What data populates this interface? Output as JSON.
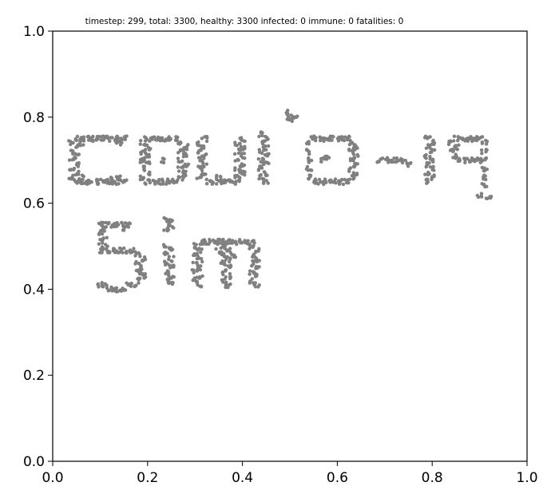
{
  "chart_data": {
    "type": "scatter",
    "title": "timestep: 299, total: 3300, healthy: 3300 infected: 0 immune: 0 fatalities: 0",
    "xlabel": "",
    "ylabel": "",
    "xlim": [
      0.0,
      1.0
    ],
    "ylim": [
      0.0,
      1.0
    ],
    "xticks": [
      "0.0",
      "0.2",
      "0.4",
      "0.6",
      "0.8",
      "1.0"
    ],
    "yticks": [
      "0.0",
      "0.2",
      "0.4",
      "0.6",
      "0.8",
      "1.0"
    ],
    "grid": false,
    "point_color": "#808080",
    "series": [
      {
        "values_description_note": "",
        "points": [
          [
            0.04,
            0.74
          ],
          [
            0.04,
            0.72
          ],
          [
            0.04,
            0.7
          ],
          [
            0.04,
            0.68
          ],
          [
            0.04,
            0.66
          ],
          [
            0.05,
            0.75
          ],
          [
            0.05,
            0.65
          ],
          [
            0.06,
            0.75
          ],
          [
            0.07,
            0.75
          ],
          [
            0.08,
            0.75
          ],
          [
            0.09,
            0.75
          ],
          [
            0.1,
            0.75
          ],
          [
            0.11,
            0.75
          ],
          [
            0.12,
            0.75
          ],
          [
            0.13,
            0.75
          ],
          [
            0.14,
            0.75
          ],
          [
            0.15,
            0.75
          ],
          [
            0.06,
            0.65
          ],
          [
            0.07,
            0.65
          ],
          [
            0.08,
            0.65
          ],
          [
            0.09,
            0.65
          ],
          [
            0.1,
            0.65
          ],
          [
            0.11,
            0.65
          ],
          [
            0.12,
            0.65
          ],
          [
            0.13,
            0.65
          ],
          [
            0.14,
            0.65
          ],
          [
            0.15,
            0.65
          ],
          [
            0.05,
            0.73
          ],
          [
            0.05,
            0.71
          ],
          [
            0.05,
            0.69
          ],
          [
            0.05,
            0.67
          ],
          [
            0.06,
            0.74
          ],
          [
            0.06,
            0.66
          ],
          [
            0.14,
            0.74
          ],
          [
            0.14,
            0.66
          ],
          [
            0.13,
            0.745
          ],
          [
            0.12,
            0.655
          ],
          [
            0.19,
            0.74
          ],
          [
            0.19,
            0.72
          ],
          [
            0.19,
            0.7
          ],
          [
            0.19,
            0.68
          ],
          [
            0.19,
            0.66
          ],
          [
            0.2,
            0.75
          ],
          [
            0.2,
            0.73
          ],
          [
            0.2,
            0.71
          ],
          [
            0.2,
            0.69
          ],
          [
            0.2,
            0.67
          ],
          [
            0.2,
            0.65
          ],
          [
            0.21,
            0.75
          ],
          [
            0.22,
            0.75
          ],
          [
            0.23,
            0.75
          ],
          [
            0.24,
            0.75
          ],
          [
            0.25,
            0.75
          ],
          [
            0.26,
            0.75
          ],
          [
            0.21,
            0.65
          ],
          [
            0.22,
            0.65
          ],
          [
            0.23,
            0.65
          ],
          [
            0.24,
            0.65
          ],
          [
            0.25,
            0.65
          ],
          [
            0.26,
            0.65
          ],
          [
            0.27,
            0.74
          ],
          [
            0.27,
            0.72
          ],
          [
            0.27,
            0.7
          ],
          [
            0.27,
            0.68
          ],
          [
            0.27,
            0.66
          ],
          [
            0.28,
            0.73
          ],
          [
            0.28,
            0.71
          ],
          [
            0.28,
            0.69
          ],
          [
            0.28,
            0.67
          ],
          [
            0.23,
            0.7
          ],
          [
            0.31,
            0.74
          ],
          [
            0.31,
            0.72
          ],
          [
            0.31,
            0.7
          ],
          [
            0.31,
            0.68
          ],
          [
            0.31,
            0.66
          ],
          [
            0.32,
            0.75
          ],
          [
            0.32,
            0.73
          ],
          [
            0.32,
            0.71
          ],
          [
            0.32,
            0.69
          ],
          [
            0.32,
            0.67
          ],
          [
            0.33,
            0.65
          ],
          [
            0.34,
            0.65
          ],
          [
            0.35,
            0.65
          ],
          [
            0.36,
            0.65
          ],
          [
            0.37,
            0.65
          ],
          [
            0.38,
            0.65
          ],
          [
            0.39,
            0.65
          ],
          [
            0.39,
            0.74
          ],
          [
            0.39,
            0.72
          ],
          [
            0.39,
            0.7
          ],
          [
            0.39,
            0.68
          ],
          [
            0.39,
            0.66
          ],
          [
            0.4,
            0.75
          ],
          [
            0.4,
            0.73
          ],
          [
            0.4,
            0.71
          ],
          [
            0.4,
            0.69
          ],
          [
            0.4,
            0.67
          ],
          [
            0.35,
            0.66
          ],
          [
            0.44,
            0.76
          ],
          [
            0.44,
            0.74
          ],
          [
            0.44,
            0.72
          ],
          [
            0.44,
            0.7
          ],
          [
            0.44,
            0.68
          ],
          [
            0.44,
            0.66
          ],
          [
            0.45,
            0.75
          ],
          [
            0.45,
            0.73
          ],
          [
            0.45,
            0.71
          ],
          [
            0.45,
            0.69
          ],
          [
            0.45,
            0.67
          ],
          [
            0.45,
            0.65
          ],
          [
            0.49,
            0.81
          ],
          [
            0.5,
            0.8
          ],
          [
            0.51,
            0.8
          ],
          [
            0.5,
            0.795
          ],
          [
            0.54,
            0.74
          ],
          [
            0.54,
            0.72
          ],
          [
            0.54,
            0.7
          ],
          [
            0.54,
            0.68
          ],
          [
            0.54,
            0.66
          ],
          [
            0.55,
            0.75
          ],
          [
            0.55,
            0.65
          ],
          [
            0.56,
            0.75
          ],
          [
            0.57,
            0.75
          ],
          [
            0.58,
            0.75
          ],
          [
            0.59,
            0.75
          ],
          [
            0.6,
            0.75
          ],
          [
            0.61,
            0.75
          ],
          [
            0.62,
            0.75
          ],
          [
            0.56,
            0.65
          ],
          [
            0.57,
            0.65
          ],
          [
            0.58,
            0.65
          ],
          [
            0.59,
            0.65
          ],
          [
            0.6,
            0.65
          ],
          [
            0.61,
            0.65
          ],
          [
            0.62,
            0.65
          ],
          [
            0.63,
            0.74
          ],
          [
            0.63,
            0.72
          ],
          [
            0.63,
            0.7
          ],
          [
            0.63,
            0.68
          ],
          [
            0.63,
            0.66
          ],
          [
            0.64,
            0.73
          ],
          [
            0.64,
            0.71
          ],
          [
            0.64,
            0.69
          ],
          [
            0.64,
            0.67
          ],
          [
            0.57,
            0.7
          ],
          [
            0.58,
            0.705
          ],
          [
            0.69,
            0.7
          ],
          [
            0.7,
            0.7
          ],
          [
            0.71,
            0.7
          ],
          [
            0.72,
            0.7
          ],
          [
            0.73,
            0.7
          ],
          [
            0.74,
            0.7
          ],
          [
            0.75,
            0.69
          ],
          [
            0.79,
            0.75
          ],
          [
            0.79,
            0.73
          ],
          [
            0.79,
            0.71
          ],
          [
            0.79,
            0.69
          ],
          [
            0.79,
            0.67
          ],
          [
            0.79,
            0.65
          ],
          [
            0.8,
            0.74
          ],
          [
            0.8,
            0.72
          ],
          [
            0.8,
            0.7
          ],
          [
            0.8,
            0.68
          ],
          [
            0.8,
            0.66
          ],
          [
            0.84,
            0.74
          ],
          [
            0.84,
            0.72
          ],
          [
            0.85,
            0.75
          ],
          [
            0.86,
            0.75
          ],
          [
            0.87,
            0.75
          ],
          [
            0.88,
            0.75
          ],
          [
            0.89,
            0.75
          ],
          [
            0.9,
            0.75
          ],
          [
            0.91,
            0.74
          ],
          [
            0.91,
            0.72
          ],
          [
            0.91,
            0.7
          ],
          [
            0.91,
            0.68
          ],
          [
            0.91,
            0.66
          ],
          [
            0.91,
            0.64
          ],
          [
            0.9,
            0.62
          ],
          [
            0.92,
            0.61
          ],
          [
            0.85,
            0.71
          ],
          [
            0.86,
            0.7
          ],
          [
            0.87,
            0.7
          ],
          [
            0.88,
            0.7
          ],
          [
            0.89,
            0.7
          ],
          [
            0.9,
            0.7
          ],
          [
            0.85,
            0.73
          ],
          [
            0.1,
            0.55
          ],
          [
            0.11,
            0.55
          ],
          [
            0.12,
            0.55
          ],
          [
            0.13,
            0.55
          ],
          [
            0.14,
            0.55
          ],
          [
            0.15,
            0.55
          ],
          [
            0.16,
            0.55
          ],
          [
            0.1,
            0.53
          ],
          [
            0.1,
            0.51
          ],
          [
            0.1,
            0.49
          ],
          [
            0.11,
            0.52
          ],
          [
            0.11,
            0.5
          ],
          [
            0.12,
            0.49
          ],
          [
            0.13,
            0.49
          ],
          [
            0.14,
            0.49
          ],
          [
            0.15,
            0.49
          ],
          [
            0.16,
            0.49
          ],
          [
            0.17,
            0.49
          ],
          [
            0.18,
            0.48
          ],
          [
            0.18,
            0.46
          ],
          [
            0.18,
            0.44
          ],
          [
            0.18,
            0.42
          ],
          [
            0.19,
            0.47
          ],
          [
            0.19,
            0.45
          ],
          [
            0.19,
            0.43
          ],
          [
            0.1,
            0.41
          ],
          [
            0.11,
            0.41
          ],
          [
            0.12,
            0.4
          ],
          [
            0.13,
            0.4
          ],
          [
            0.14,
            0.4
          ],
          [
            0.15,
            0.4
          ],
          [
            0.16,
            0.41
          ],
          [
            0.17,
            0.41
          ],
          [
            0.11,
            0.54
          ],
          [
            0.15,
            0.54
          ],
          [
            0.24,
            0.56
          ],
          [
            0.25,
            0.56
          ],
          [
            0.24,
            0.54
          ],
          [
            0.25,
            0.545
          ],
          [
            0.24,
            0.5
          ],
          [
            0.24,
            0.48
          ],
          [
            0.24,
            0.46
          ],
          [
            0.24,
            0.44
          ],
          [
            0.24,
            0.42
          ],
          [
            0.25,
            0.49
          ],
          [
            0.25,
            0.47
          ],
          [
            0.25,
            0.45
          ],
          [
            0.25,
            0.43
          ],
          [
            0.25,
            0.41
          ],
          [
            0.3,
            0.5
          ],
          [
            0.3,
            0.48
          ],
          [
            0.3,
            0.46
          ],
          [
            0.3,
            0.44
          ],
          [
            0.3,
            0.42
          ],
          [
            0.31,
            0.51
          ],
          [
            0.31,
            0.49
          ],
          [
            0.31,
            0.47
          ],
          [
            0.31,
            0.45
          ],
          [
            0.31,
            0.43
          ],
          [
            0.31,
            0.41
          ],
          [
            0.32,
            0.51
          ],
          [
            0.33,
            0.51
          ],
          [
            0.34,
            0.51
          ],
          [
            0.35,
            0.51
          ],
          [
            0.36,
            0.51
          ],
          [
            0.37,
            0.51
          ],
          [
            0.38,
            0.51
          ],
          [
            0.39,
            0.51
          ],
          [
            0.4,
            0.51
          ],
          [
            0.41,
            0.51
          ],
          [
            0.42,
            0.51
          ],
          [
            0.36,
            0.5
          ],
          [
            0.36,
            0.48
          ],
          [
            0.36,
            0.46
          ],
          [
            0.36,
            0.44
          ],
          [
            0.36,
            0.42
          ],
          [
            0.37,
            0.49
          ],
          [
            0.37,
            0.47
          ],
          [
            0.37,
            0.45
          ],
          [
            0.37,
            0.43
          ],
          [
            0.37,
            0.41
          ],
          [
            0.42,
            0.5
          ],
          [
            0.42,
            0.48
          ],
          [
            0.42,
            0.46
          ],
          [
            0.42,
            0.44
          ],
          [
            0.42,
            0.42
          ],
          [
            0.43,
            0.49
          ],
          [
            0.43,
            0.47
          ],
          [
            0.43,
            0.45
          ],
          [
            0.43,
            0.43
          ],
          [
            0.43,
            0.41
          ],
          [
            0.38,
            0.48
          ],
          [
            0.35,
            0.49
          ]
        ]
      }
    ]
  }
}
